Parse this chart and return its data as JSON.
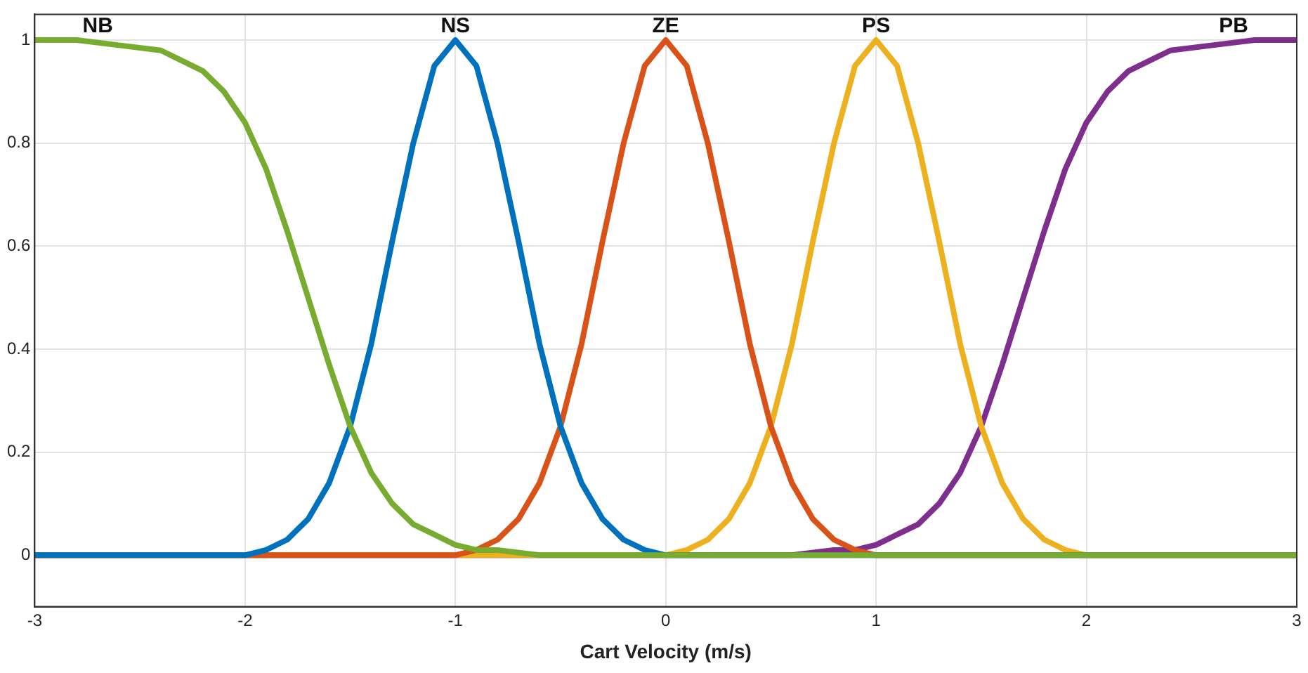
{
  "chart_data": {
    "type": "line",
    "xlabel": "Cart Velocity (m/s)",
    "xlim": [
      -3,
      3
    ],
    "xticks": [
      -3,
      -2,
      -1,
      0,
      1,
      2,
      3
    ],
    "ylim": [
      -0.1,
      1.05
    ],
    "yticks": [
      0,
      0.2,
      0.4,
      0.6,
      0.8,
      1
    ],
    "grid": true,
    "legend": false,
    "marker": "none",
    "line_style": "solid",
    "series": [
      {
        "name": "NB",
        "color": "#77ac30",
        "x": [
          -3,
          -2.8,
          -2.6,
          -2.4,
          -2.3,
          -2.2,
          -2.1,
          -2,
          -1.9,
          -1.8,
          -1.7,
          -1.6,
          -1.5,
          -1.4,
          -1.3,
          -1.2,
          -1.1,
          -1,
          -0.9,
          -0.8,
          -0.6,
          3
        ],
        "values": [
          1,
          1,
          0.99,
          0.98,
          0.96,
          0.94,
          0.9,
          0.84,
          0.75,
          0.63,
          0.5,
          0.37,
          0.25,
          0.16,
          0.1,
          0.06,
          0.04,
          0.02,
          0.01,
          0.01,
          0,
          0
        ]
      },
      {
        "name": "NS",
        "color": "#0072bd",
        "x": [
          -3,
          -2,
          -1.9,
          -1.8,
          -1.7,
          -1.6,
          -1.5,
          -1.4,
          -1.3,
          -1.2,
          -1.1,
          -1,
          -0.9,
          -0.8,
          -0.7,
          -0.6,
          -0.5,
          -0.4,
          -0.3,
          -0.2,
          -0.1,
          0,
          3
        ],
        "values": [
          0,
          0,
          0.01,
          0.03,
          0.07,
          0.14,
          0.25,
          0.41,
          0.61,
          0.8,
          0.95,
          1,
          0.95,
          0.8,
          0.61,
          0.41,
          0.25,
          0.14,
          0.07,
          0.03,
          0.01,
          0,
          0
        ]
      },
      {
        "name": "ZE",
        "color": "#d95319",
        "x": [
          -3,
          -1,
          -0.9,
          -0.8,
          -0.7,
          -0.6,
          -0.5,
          -0.4,
          -0.3,
          -0.2,
          -0.1,
          0,
          0.1,
          0.2,
          0.3,
          0.4,
          0.5,
          0.6,
          0.7,
          0.8,
          0.9,
          1,
          3
        ],
        "values": [
          0,
          0,
          0.01,
          0.03,
          0.07,
          0.14,
          0.25,
          0.41,
          0.61,
          0.8,
          0.95,
          1,
          0.95,
          0.8,
          0.61,
          0.41,
          0.25,
          0.14,
          0.07,
          0.03,
          0.01,
          0,
          0
        ]
      },
      {
        "name": "PS",
        "color": "#edb120",
        "x": [
          -3,
          0,
          0.1,
          0.2,
          0.3,
          0.4,
          0.5,
          0.6,
          0.7,
          0.8,
          0.9,
          1,
          1.1,
          1.2,
          1.3,
          1.4,
          1.5,
          1.6,
          1.7,
          1.8,
          1.9,
          2,
          3
        ],
        "values": [
          0,
          0,
          0.01,
          0.03,
          0.07,
          0.14,
          0.25,
          0.41,
          0.61,
          0.8,
          0.95,
          1,
          0.95,
          0.8,
          0.61,
          0.41,
          0.25,
          0.14,
          0.07,
          0.03,
          0.01,
          0,
          0
        ]
      },
      {
        "name": "PB",
        "color": "#7e2f8e",
        "x": [
          -3,
          0.6,
          0.8,
          0.9,
          1,
          1.1,
          1.2,
          1.3,
          1.4,
          1.5,
          1.6,
          1.7,
          1.8,
          1.9,
          2,
          2.1,
          2.2,
          2.3,
          2.4,
          2.6,
          2.8,
          3
        ],
        "values": [
          0,
          0,
          0.01,
          0.01,
          0.02,
          0.04,
          0.06,
          0.1,
          0.16,
          0.25,
          0.37,
          0.5,
          0.63,
          0.75,
          0.84,
          0.9,
          0.94,
          0.96,
          0.98,
          0.99,
          1,
          1
        ]
      }
    ]
  }
}
